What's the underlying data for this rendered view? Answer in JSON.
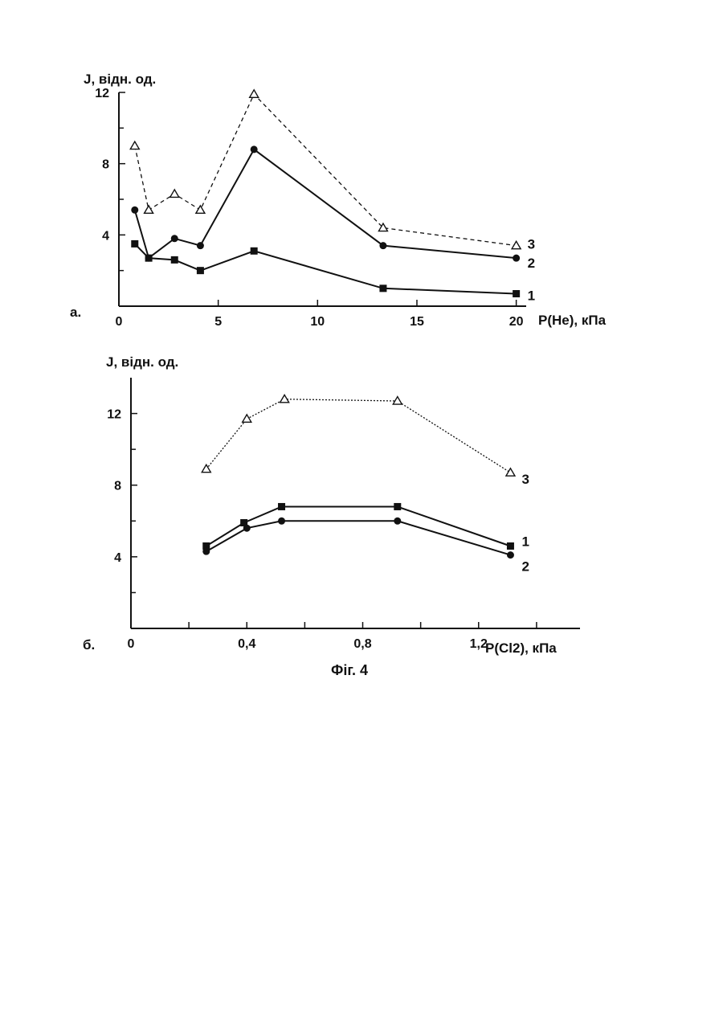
{
  "figure_caption": "Фіг. 4",
  "chart_data": [
    {
      "type": "line",
      "panel_label": "а.",
      "ylabel": "J, відн. од.",
      "xlabel": "P(He), кПа",
      "xlim": [
        0,
        20.5
      ],
      "ylim": [
        0,
        12
      ],
      "x_ticks": [
        0,
        5,
        10,
        15,
        20
      ],
      "x_tick_labels": [
        "0",
        "5",
        "10",
        "15",
        "20"
      ],
      "y_ticks": [
        4,
        8,
        12
      ],
      "y_tick_labels": [
        "4",
        "8",
        "12"
      ],
      "series": [
        {
          "name": "1",
          "marker": "square",
          "dash": "solid",
          "x": [
            0.8,
            1.5,
            2.8,
            4.1,
            6.8,
            13.3,
            20
          ],
          "y": [
            3.5,
            2.7,
            2.6,
            2.0,
            3.1,
            1.0,
            0.7
          ]
        },
        {
          "name": "2",
          "marker": "circle",
          "dash": "solid",
          "x": [
            0.8,
            1.5,
            2.8,
            4.1,
            6.8,
            13.3,
            20
          ],
          "y": [
            5.4,
            2.7,
            3.8,
            3.4,
            8.8,
            3.4,
            2.7
          ]
        },
        {
          "name": "3",
          "marker": "triangle",
          "dash": "dashed",
          "x": [
            0.8,
            1.5,
            2.8,
            4.1,
            6.8,
            13.3,
            20
          ],
          "y": [
            9.0,
            5.4,
            6.3,
            5.4,
            11.9,
            4.4,
            3.4
          ]
        }
      ]
    },
    {
      "type": "line",
      "panel_label": "б.",
      "ylabel": "J, відн. од.",
      "xlabel": "P(Cl2), кПа",
      "xlim": [
        0,
        1.55
      ],
      "ylim": [
        0,
        14
      ],
      "x_ticks": [
        0,
        0.4,
        0.8,
        1.2
      ],
      "x_tick_labels": [
        "0",
        "0,4",
        "0,8",
        "1,2"
      ],
      "y_ticks": [
        4,
        8,
        12
      ],
      "y_tick_labels": [
        "4",
        "8",
        "12"
      ],
      "series": [
        {
          "name": "1",
          "marker": "square",
          "dash": "solid",
          "x": [
            0.26,
            0.39,
            0.52,
            0.92,
            1.31
          ],
          "y": [
            4.6,
            5.9,
            6.8,
            6.8,
            4.6
          ]
        },
        {
          "name": "2",
          "marker": "circle",
          "dash": "solid",
          "x": [
            0.26,
            0.4,
            0.52,
            0.92,
            1.31
          ],
          "y": [
            4.3,
            5.6,
            6.0,
            6.0,
            4.1
          ]
        },
        {
          "name": "3",
          "marker": "triangle",
          "dash": "dotted",
          "x": [
            0.26,
            0.4,
            0.53,
            0.92,
            1.31
          ],
          "y": [
            8.9,
            11.7,
            12.8,
            12.7,
            8.7
          ]
        }
      ]
    }
  ]
}
